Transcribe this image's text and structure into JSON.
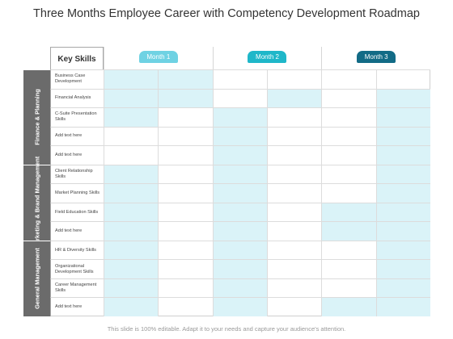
{
  "title": "Three Months Employee Career with Competency Development Roadmap",
  "footer": "This slide is 100% editable. Adapt it to your needs and capture your audience's attention.",
  "header": {
    "key_skills": "Key Skills",
    "months": [
      {
        "label": "Month 1",
        "color": "#6fd2e3"
      },
      {
        "label": "Month 2",
        "color": "#1fb7c9"
      },
      {
        "label": "Month 3",
        "color": "#126b86"
      }
    ]
  },
  "colors": {
    "highlight": "#daf3f8",
    "group_band": "#6b6b6b"
  },
  "groups": [
    {
      "label": "Finance & Planning",
      "rows": [
        {
          "skill": "Business Case Development",
          "fill": [
            1,
            1,
            0,
            0,
            0,
            0
          ]
        },
        {
          "skill": "Financial Analysis",
          "fill": [
            1,
            1,
            0,
            1,
            0,
            1
          ]
        },
        {
          "skill": "C-Suite Presentation Skills",
          "fill": [
            1,
            0,
            1,
            0,
            0,
            1
          ]
        },
        {
          "skill": "Add text here",
          "fill": [
            0,
            0,
            1,
            0,
            0,
            1
          ]
        },
        {
          "skill": "Add text here",
          "fill": [
            0,
            0,
            1,
            0,
            0,
            1
          ]
        }
      ]
    },
    {
      "label": "Marketing & Brand Management",
      "rows": [
        {
          "skill": "Client Relationship Skills",
          "fill": [
            1,
            0,
            1,
            0,
            0,
            1
          ]
        },
        {
          "skill": "Market Planning Skills",
          "fill": [
            1,
            0,
            1,
            0,
            0,
            1
          ]
        },
        {
          "skill": "Field Education Skills",
          "fill": [
            1,
            0,
            1,
            0,
            1,
            1
          ]
        },
        {
          "skill": "Add text here",
          "fill": [
            1,
            0,
            1,
            0,
            1,
            1
          ]
        }
      ]
    },
    {
      "label": "General Management",
      "rows": [
        {
          "skill": "HR & Diversity Skills",
          "fill": [
            1,
            0,
            1,
            0,
            0,
            1
          ]
        },
        {
          "skill": "Organizational Development Skills",
          "fill": [
            1,
            0,
            1,
            0,
            0,
            1
          ]
        },
        {
          "skill": "Career Management Skills",
          "fill": [
            1,
            0,
            1,
            0,
            0,
            1
          ]
        },
        {
          "skill": "Add text here",
          "fill": [
            1,
            0,
            1,
            0,
            1,
            1
          ]
        }
      ]
    }
  ]
}
